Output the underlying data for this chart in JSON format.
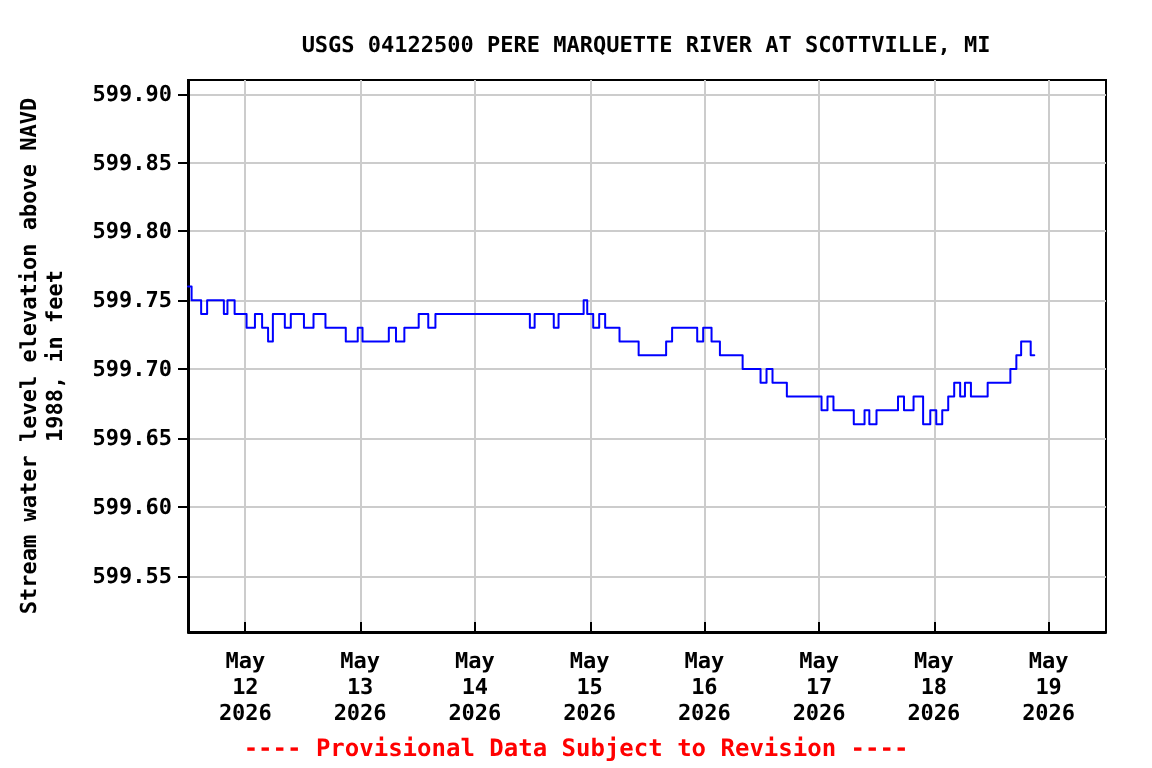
{
  "chart_data": {
    "type": "step",
    "title": "USGS 04122500 PERE MARQUETTE RIVER AT SCOTTVILLE, MI",
    "ylabel": "Stream water level elevation above NAVD\n1988, in feet",
    "annotations": [
      "---- Provisional Data Subject to Revision ----"
    ],
    "x": [
      "2026-05-11T12:00",
      "2026-05-11T12:45",
      "2026-05-11T14:45",
      "2026-05-11T16:00",
      "2026-05-11T19:30",
      "2026-05-11T20:15",
      "2026-05-11T21:45",
      "2026-05-12T00:15",
      "2026-05-12T02:00",
      "2026-05-12T03:30",
      "2026-05-12T04:45",
      "2026-05-12T05:45",
      "2026-05-12T08:15",
      "2026-05-12T09:30",
      "2026-05-12T12:15",
      "2026-05-12T14:15",
      "2026-05-12T16:45",
      "2026-05-12T21:00",
      "2026-05-12T23:30",
      "2026-05-13T00:30",
      "2026-05-13T06:00",
      "2026-05-13T07:30",
      "2026-05-13T09:15",
      "2026-05-13T12:15",
      "2026-05-13T14:15",
      "2026-05-13T15:45",
      "2026-05-14T11:30",
      "2026-05-14T12:30",
      "2026-05-14T16:30",
      "2026-05-14T17:30",
      "2026-05-14T22:45",
      "2026-05-14T23:30",
      "2026-05-15T00:45",
      "2026-05-15T02:00",
      "2026-05-15T03:15",
      "2026-05-15T06:15",
      "2026-05-15T10:15",
      "2026-05-15T16:00",
      "2026-05-15T17:15",
      "2026-05-15T22:30",
      "2026-05-15T23:45",
      "2026-05-16T01:30",
      "2026-05-16T03:15",
      "2026-05-16T08:00",
      "2026-05-16T11:45",
      "2026-05-16T13:00",
      "2026-05-16T14:15",
      "2026-05-16T17:15",
      "2026-05-17T00:30",
      "2026-05-17T01:45",
      "2026-05-17T03:00",
      "2026-05-17T07:15",
      "2026-05-17T09:30",
      "2026-05-17T10:30",
      "2026-05-17T12:00",
      "2026-05-17T16:30",
      "2026-05-17T17:45",
      "2026-05-17T19:45",
      "2026-05-17T21:45",
      "2026-05-17T23:15",
      "2026-05-18T00:30",
      "2026-05-18T01:45",
      "2026-05-18T03:00",
      "2026-05-18T04:15",
      "2026-05-18T05:30",
      "2026-05-18T06:30",
      "2026-05-18T07:45",
      "2026-05-18T11:15",
      "2026-05-18T16:00",
      "2026-05-18T17:15",
      "2026-05-18T18:15",
      "2026-05-18T20:15",
      "2026-05-18T21:00"
    ],
    "series": [
      {
        "color": "#0000ff",
        "values": [
          599.76,
          599.75,
          599.74,
          599.75,
          599.74,
          599.75,
          599.74,
          599.73,
          599.74,
          599.73,
          599.72,
          599.74,
          599.73,
          599.74,
          599.73,
          599.74,
          599.73,
          599.72,
          599.73,
          599.72,
          599.73,
          599.72,
          599.73,
          599.74,
          599.73,
          599.74,
          599.73,
          599.74,
          599.73,
          599.74,
          599.75,
          599.74,
          599.73,
          599.74,
          599.73,
          599.72,
          599.71,
          599.72,
          599.73,
          599.72,
          599.73,
          599.72,
          599.71,
          599.7,
          599.69,
          599.7,
          599.69,
          599.68,
          599.67,
          599.68,
          599.67,
          599.66,
          599.67,
          599.66,
          599.67,
          599.68,
          599.67,
          599.68,
          599.66,
          599.67,
          599.66,
          599.67,
          599.68,
          599.69,
          599.68,
          599.69,
          599.68,
          599.69,
          599.7,
          599.71,
          599.72,
          599.71,
          599.71
        ]
      }
    ],
    "xlim": [
      "2026-05-11T12:00",
      "2026-05-19T12:00"
    ],
    "xticks": [
      {
        "value": "2026-05-12",
        "label": "May\n12\n2026"
      },
      {
        "value": "2026-05-13",
        "label": "May\n13\n2026"
      },
      {
        "value": "2026-05-14",
        "label": "May\n14\n2026"
      },
      {
        "value": "2026-05-15",
        "label": "May\n15\n2026"
      },
      {
        "value": "2026-05-16",
        "label": "May\n16\n2026"
      },
      {
        "value": "2026-05-17",
        "label": "May\n17\n2026"
      },
      {
        "value": "2026-05-18",
        "label": "May\n18\n2026"
      },
      {
        "value": "2026-05-19",
        "label": "May\n19\n2026"
      }
    ],
    "ylim": [
      599.509,
      599.91
    ],
    "yticks": [
      {
        "value": 599.55,
        "label": "599.55"
      },
      {
        "value": 599.6,
        "label": "599.60"
      },
      {
        "value": 599.65,
        "label": "599.65"
      },
      {
        "value": 599.7,
        "label": "599.70"
      },
      {
        "value": 599.75,
        "label": "599.75"
      },
      {
        "value": 599.8,
        "label": "599.80"
      },
      {
        "value": 599.85,
        "label": "599.85"
      },
      {
        "value": 599.9,
        "label": "599.90"
      }
    ],
    "grid": true,
    "marker": "none",
    "line_style": "solid"
  }
}
